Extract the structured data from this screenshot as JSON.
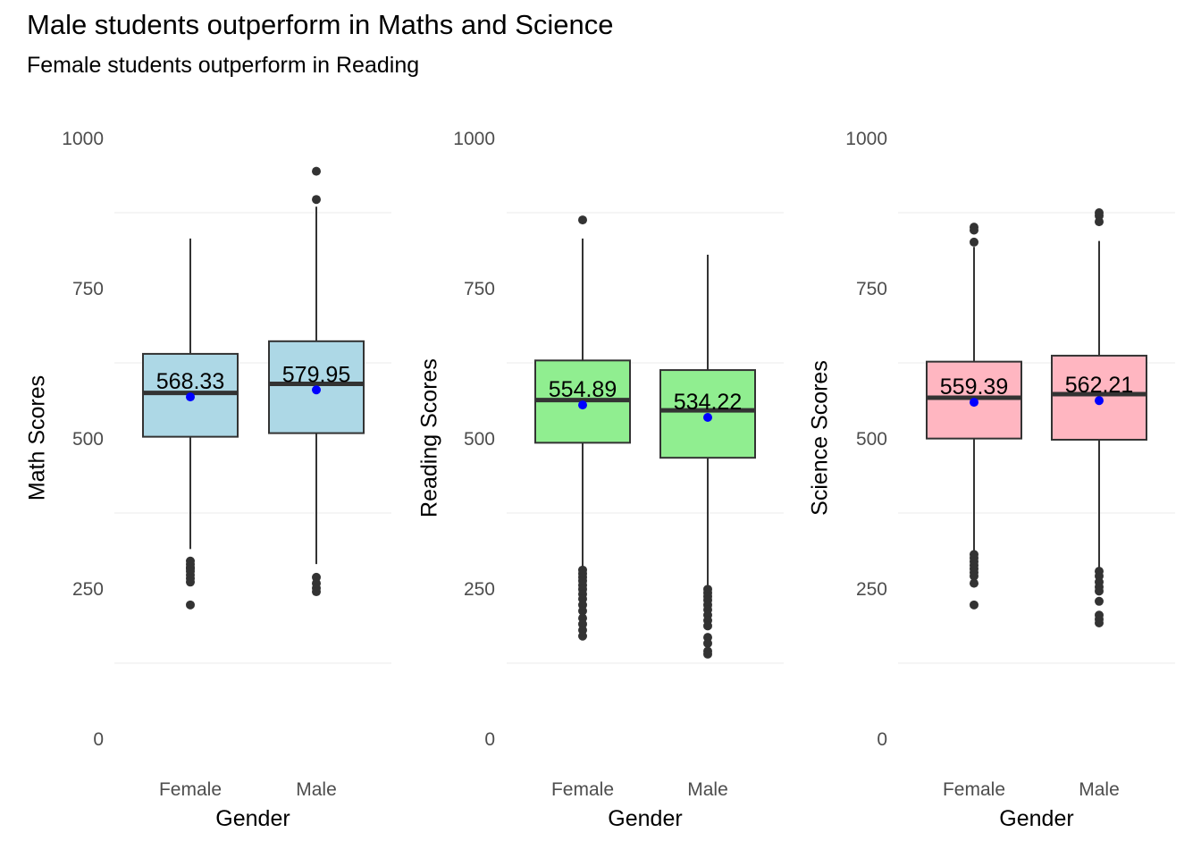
{
  "title": "Male students outperform in Maths and Science",
  "subtitle": "Female students outperform in Reading",
  "chart_data": [
    {
      "type": "box",
      "title": "",
      "xlabel": "Gender",
      "ylabel": "Math Scores",
      "ylim": [
        0,
        1000
      ],
      "yticks": [
        0,
        250,
        500,
        750,
        1000
      ],
      "grid": true,
      "fill_color": "#add8e6",
      "mean_color": "#0000ff",
      "categories": [
        "Female",
        "Male"
      ],
      "boxes": [
        {
          "category": "Female",
          "q1": 502,
          "median": 575,
          "q3": 640,
          "whisker_low": 315,
          "whisker_high": 832,
          "mean": 568.33,
          "mean_label": "568.33",
          "outliers": [
            295,
            290,
            285,
            282,
            278,
            272,
            266,
            260,
            222
          ]
        },
        {
          "category": "Male",
          "q1": 508,
          "median": 590,
          "q3": 661,
          "whisker_low": 290,
          "whisker_high": 885,
          "mean": 579.95,
          "mean_label": "579.95",
          "outliers": [
            944,
            897,
            268,
            258,
            250,
            244
          ]
        }
      ]
    },
    {
      "type": "box",
      "title": "",
      "xlabel": "Gender",
      "ylabel": "Reading Scores",
      "ylim": [
        0,
        1000
      ],
      "yticks": [
        0,
        250,
        500,
        750,
        1000
      ],
      "grid": true,
      "fill_color": "#90ee90",
      "mean_color": "#0000ff",
      "categories": [
        "Female",
        "Male"
      ],
      "boxes": [
        {
          "category": "Female",
          "q1": 492,
          "median": 563,
          "q3": 629,
          "whisker_low": 285,
          "whisker_high": 832,
          "mean": 554.89,
          "mean_label": "554.89",
          "outliers": [
            863,
            280,
            274,
            268,
            262,
            255,
            248,
            240,
            232,
            222,
            212,
            200,
            190,
            180,
            170
          ]
        },
        {
          "category": "Male",
          "q1": 467,
          "median": 546,
          "q3": 613,
          "whisker_low": 255,
          "whisker_high": 805,
          "mean": 534.22,
          "mean_label": "534.22",
          "outliers": [
            248,
            242,
            236,
            230,
            222,
            214,
            205,
            196,
            187,
            168,
            158,
            145,
            140
          ]
        }
      ]
    },
    {
      "type": "box",
      "title": "",
      "xlabel": "Gender",
      "ylabel": "Science Scores",
      "ylim": [
        0,
        1000
      ],
      "yticks": [
        0,
        250,
        500,
        750,
        1000
      ],
      "grid": true,
      "fill_color": "#ffb6c1",
      "mean_color": "#0000ff",
      "categories": [
        "Female",
        "Male"
      ],
      "boxes": [
        {
          "category": "Female",
          "q1": 499,
          "median": 567,
          "q3": 627,
          "whisker_low": 310,
          "whisker_high": 818,
          "mean": 559.39,
          "mean_label": "559.39",
          "outliers": [
            851,
            846,
            826,
            306,
            300,
            294,
            288,
            282,
            276,
            270,
            258,
            222
          ]
        },
        {
          "category": "Male",
          "q1": 497,
          "median": 573,
          "q3": 637,
          "whisker_low": 285,
          "whisker_high": 828,
          "mean": 562.21,
          "mean_label": "562.21",
          "outliers": [
            875,
            870,
            860,
            278,
            270,
            260,
            252,
            245,
            228,
            205,
            198,
            192
          ]
        }
      ]
    }
  ]
}
